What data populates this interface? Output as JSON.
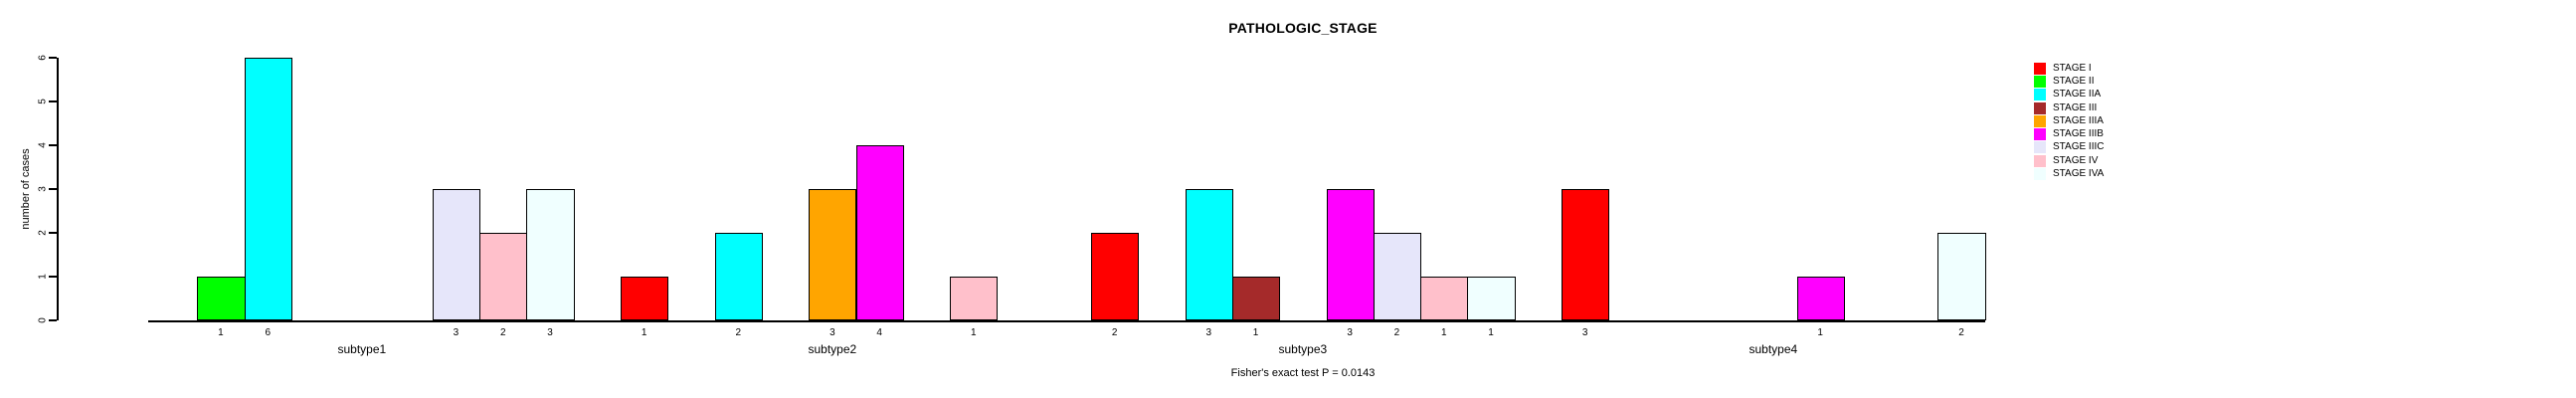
{
  "chart_data": {
    "type": "bar",
    "title": "PATHOLOGIC_STAGE",
    "caption": "Fisher's exact test P = 0.0143",
    "ylabel": "number of cases",
    "ylim": [
      0,
      6
    ],
    "yticks": [
      0,
      1,
      2,
      3,
      4,
      5,
      6
    ],
    "grid": false,
    "bar_value_labels_shown": true,
    "legend_position": "top-right",
    "background_color": "#ffffff",
    "axis_color": "#000000",
    "stages": [
      {
        "label": "STAGE I",
        "color": "#FF0000"
      },
      {
        "label": "STAGE II",
        "color": "#00FF00"
      },
      {
        "label": "STAGE IIA",
        "color": "#00FFFF"
      },
      {
        "label": "STAGE III",
        "color": "#A52A2A"
      },
      {
        "label": "STAGE IIIA",
        "color": "#FFA500"
      },
      {
        "label": "STAGE IIIB",
        "color": "#FF00FF"
      },
      {
        "label": "STAGE IIIC",
        "color": "#E6E6FA"
      },
      {
        "label": "STAGE IV",
        "color": "#FFC0CB"
      },
      {
        "label": "STAGE IVA",
        "color": "#F0FFFF"
      }
    ],
    "groups": [
      {
        "label": "subtype1",
        "values": [
          0,
          1,
          6,
          0,
          0,
          0,
          3,
          2,
          3
        ]
      },
      {
        "label": "subtype2",
        "values": [
          1,
          0,
          2,
          0,
          3,
          4,
          0,
          1,
          0
        ]
      },
      {
        "label": "subtype3",
        "values": [
          2,
          0,
          3,
          1,
          0,
          3,
          2,
          1,
          1
        ]
      },
      {
        "label": "subtype4",
        "values": [
          3,
          0,
          0,
          0,
          0,
          1,
          0,
          0,
          2
        ]
      }
    ]
  }
}
